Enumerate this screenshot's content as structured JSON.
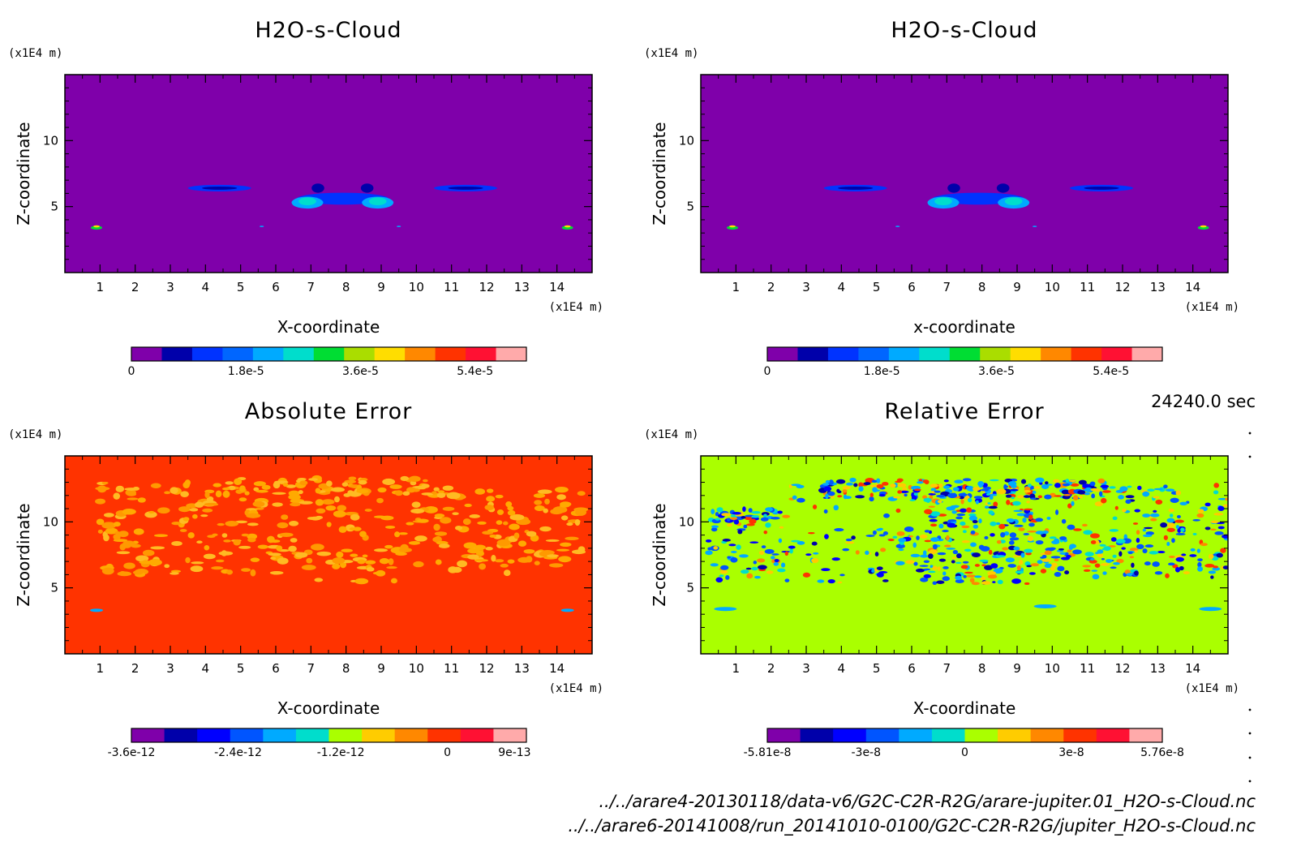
{
  "time_label": "24240.0 sec",
  "files": [
    "../../arare4-20130118/data-v6/G2C-C2R-R2G/arare-jupiter.01_H2O-s-Cloud.nc",
    "../../arare6-20141008/run_20141010-0100/G2C-C2R-R2G/jupiter_H2O-s-Cloud.nc"
  ],
  "chart_data": [
    {
      "type": "heatmap",
      "title": "H2O-s-Cloud",
      "xlabel": "X-coordinate",
      "ylabel": "Z-coordinate",
      "x_unit": "(x1E4 m)",
      "y_unit": "(x1E4 m)",
      "xlim": [
        0,
        15
      ],
      "ylim": [
        0,
        15
      ],
      "x_ticks": [
        "1",
        "2",
        "3",
        "4",
        "5",
        "6",
        "7",
        "8",
        "9",
        "10",
        "11",
        "12",
        "13",
        "14"
      ],
      "y_ticks": [
        "5",
        "10"
      ],
      "background_color": "#7f00aa",
      "colorbar": {
        "colors": [
          "#7f00aa",
          "#0000aa",
          "#0033ff",
          "#0066ff",
          "#00aaff",
          "#00ddcc",
          "#00dd33",
          "#aadd00",
          "#ffdd00",
          "#ff8800",
          "#ff3300",
          "#ff1133",
          "#ffaaaa"
        ],
        "tick_labels": [
          "0",
          "1.8e-5",
          "3.6e-5",
          "5.4e-5"
        ]
      }
    },
    {
      "type": "heatmap",
      "title": "H2O-s-Cloud",
      "xlabel": "x-coordinate",
      "ylabel": "Z-coordinate",
      "x_unit": "(x1E4 m)",
      "y_unit": "(x1E4 m)",
      "xlim": [
        0,
        15
      ],
      "ylim": [
        0,
        15
      ],
      "x_ticks": [
        "1",
        "2",
        "3",
        "4",
        "5",
        "6",
        "7",
        "8",
        "9",
        "10",
        "11",
        "12",
        "13",
        "14"
      ],
      "y_ticks": [
        "5",
        "10"
      ],
      "background_color": "#7f00aa",
      "colorbar": {
        "colors": [
          "#7f00aa",
          "#0000aa",
          "#0033ff",
          "#0066ff",
          "#00aaff",
          "#00ddcc",
          "#00dd33",
          "#aadd00",
          "#ffdd00",
          "#ff8800",
          "#ff3300",
          "#ff1133",
          "#ffaaaa"
        ],
        "tick_labels": [
          "0",
          "1.8e-5",
          "3.6e-5",
          "5.4e-5"
        ]
      }
    },
    {
      "type": "heatmap",
      "title": "Absolute Error",
      "xlabel": "X-coordinate",
      "ylabel": "Z-coordinate",
      "x_unit": "(x1E4 m)",
      "y_unit": "(x1E4 m)",
      "xlim": [
        0,
        15
      ],
      "ylim": [
        0,
        15
      ],
      "x_ticks": [
        "1",
        "2",
        "3",
        "4",
        "5",
        "6",
        "7",
        "8",
        "9",
        "10",
        "11",
        "12",
        "13",
        "14"
      ],
      "y_ticks": [
        "5",
        "10"
      ],
      "background_color": "#ff3300",
      "colorbar": {
        "colors": [
          "#7f00aa",
          "#0000aa",
          "#0000ff",
          "#0055ff",
          "#00aaff",
          "#00ddcc",
          "#aaff00",
          "#ffcc00",
          "#ff8800",
          "#ff3300",
          "#ff1133",
          "#ffaaaa"
        ],
        "tick_labels": [
          "-3.6e-12",
          "-2.4e-12",
          "-1.2e-12",
          "0",
          "9e-13"
        ]
      }
    },
    {
      "type": "heatmap",
      "title": "Relative Error",
      "xlabel": "X-coordinate",
      "ylabel": "Z-coordinate",
      "x_unit": "(x1E4 m)",
      "y_unit": "(x1E4 m)",
      "xlim": [
        0,
        15
      ],
      "ylim": [
        0,
        15
      ],
      "x_ticks": [
        "1",
        "2",
        "3",
        "4",
        "5",
        "6",
        "7",
        "8",
        "9",
        "10",
        "11",
        "12",
        "13",
        "14"
      ],
      "y_ticks": [
        "5",
        "10"
      ],
      "background_color": "#aaff00",
      "colorbar": {
        "colors": [
          "#7f00aa",
          "#0000aa",
          "#0000ff",
          "#0055ff",
          "#00aaff",
          "#00ddcc",
          "#aaff00",
          "#ffcc00",
          "#ff8800",
          "#ff3300",
          "#ff1133",
          "#ffaaaa"
        ],
        "tick_labels": [
          "-5.81e-8",
          "-3e-8",
          "0",
          "3e-8",
          "5.76e-8"
        ]
      }
    }
  ]
}
